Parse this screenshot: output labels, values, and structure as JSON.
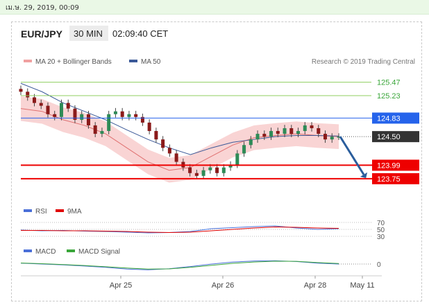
{
  "date_bar": {
    "text": "เม.ษ. 29, 2019, 00:09"
  },
  "header": {
    "pair": "EUR/JPY",
    "interval": "30 MIN",
    "time": "02:09:40 CET"
  },
  "legend": {
    "ma20": "MA 20 + Bollinger Bands",
    "ma50": "MA 50",
    "research": "Research © 2019 Trading Central",
    "rsi": "RSI",
    "nine_ma": "9MA",
    "macd": "MACD",
    "macd_signal": "MACD Signal"
  },
  "colors": {
    "candle_up": "#2e8b57",
    "candle_down": "#8b1a1a",
    "bollinger_fill": "#f8cccc",
    "ma20": "#e07070",
    "ma50": "#3b5998",
    "resistance": "#8fcf5f",
    "resistance_text": "#3aa63a",
    "pivot": "#2563eb",
    "support": "#ee0000",
    "current": "#333333",
    "arrow": "#2a5d9c"
  },
  "chart_data": [
    {
      "type": "line",
      "title": "EUR/JPY",
      "x_ticks": [
        "Apr 25",
        "Apr 26",
        "Apr 28",
        "May 11"
      ],
      "ylim": [
        123.6,
        125.7
      ],
      "series": [
        {
          "name": "MA 20 + Bollinger Bands",
          "values": [
            125.0,
            124.95,
            124.8,
            124.7,
            124.55,
            124.3,
            124.05,
            123.9,
            123.95,
            124.15,
            124.35,
            124.48,
            124.52,
            124.55,
            124.52,
            124.5
          ]
        },
        {
          "name": "MA 50",
          "values": [
            125.45,
            125.3,
            125.1,
            124.95,
            124.8,
            124.62,
            124.45,
            124.3,
            124.18,
            124.3,
            124.4,
            124.45,
            124.5,
            124.52,
            124.52,
            124.51
          ]
        }
      ],
      "candles": [
        125.3,
        125.2,
        125.1,
        125.05,
        124.9,
        124.85,
        125.1,
        125.0,
        124.8,
        124.9,
        124.7,
        124.55,
        124.6,
        124.9,
        124.95,
        124.85,
        124.9,
        124.85,
        124.75,
        124.6,
        124.45,
        124.3,
        124.2,
        124.05,
        123.95,
        123.85,
        123.8,
        123.9,
        123.95,
        123.85,
        123.95,
        124.0,
        124.2,
        124.35,
        124.45,
        124.55,
        124.5,
        124.6,
        124.55,
        124.65,
        124.55,
        124.6,
        124.7,
        124.65,
        124.55,
        124.45,
        124.5,
        124.5
      ],
      "levels": [
        {
          "value": 125.47,
          "label": "125.47",
          "kind": "resistance"
        },
        {
          "value": 125.23,
          "label": "125.23",
          "kind": "resistance"
        },
        {
          "value": 124.83,
          "label": "124.83",
          "kind": "pivot"
        },
        {
          "value": 124.5,
          "label": "124.50",
          "kind": "current"
        },
        {
          "value": 123.99,
          "label": "123.99",
          "kind": "support"
        },
        {
          "value": 123.75,
          "label": "123.75",
          "kind": "support"
        }
      ],
      "forecast_arrow": {
        "from": 124.5,
        "to": 123.75
      }
    },
    {
      "type": "line",
      "title": "RSI",
      "ylim": [
        30,
        70
      ],
      "y_ticks": [
        "70",
        "50",
        "30"
      ],
      "series": [
        {
          "name": "RSI",
          "values": [
            48,
            46,
            47,
            45,
            44,
            42,
            40,
            41,
            44,
            52,
            55,
            58,
            60,
            54,
            50,
            52
          ]
        },
        {
          "name": "9MA",
          "values": [
            47,
            47,
            46,
            46,
            45,
            44,
            42,
            41,
            42,
            46,
            50,
            54,
            57,
            56,
            54,
            53
          ]
        }
      ]
    },
    {
      "type": "line",
      "title": "MACD",
      "y_ticks": [
        "0"
      ],
      "series": [
        {
          "name": "MACD",
          "values": [
            0.05,
            0.0,
            -0.05,
            -0.12,
            -0.2,
            -0.3,
            -0.35,
            -0.28,
            -0.15,
            0.0,
            0.12,
            0.18,
            0.2,
            0.15,
            0.05,
            0.0
          ]
        },
        {
          "name": "MACD Signal",
          "values": [
            0.06,
            0.02,
            -0.03,
            -0.09,
            -0.16,
            -0.24,
            -0.3,
            -0.29,
            -0.2,
            -0.08,
            0.04,
            0.12,
            0.17,
            0.16,
            0.09,
            0.03
          ]
        }
      ]
    }
  ]
}
